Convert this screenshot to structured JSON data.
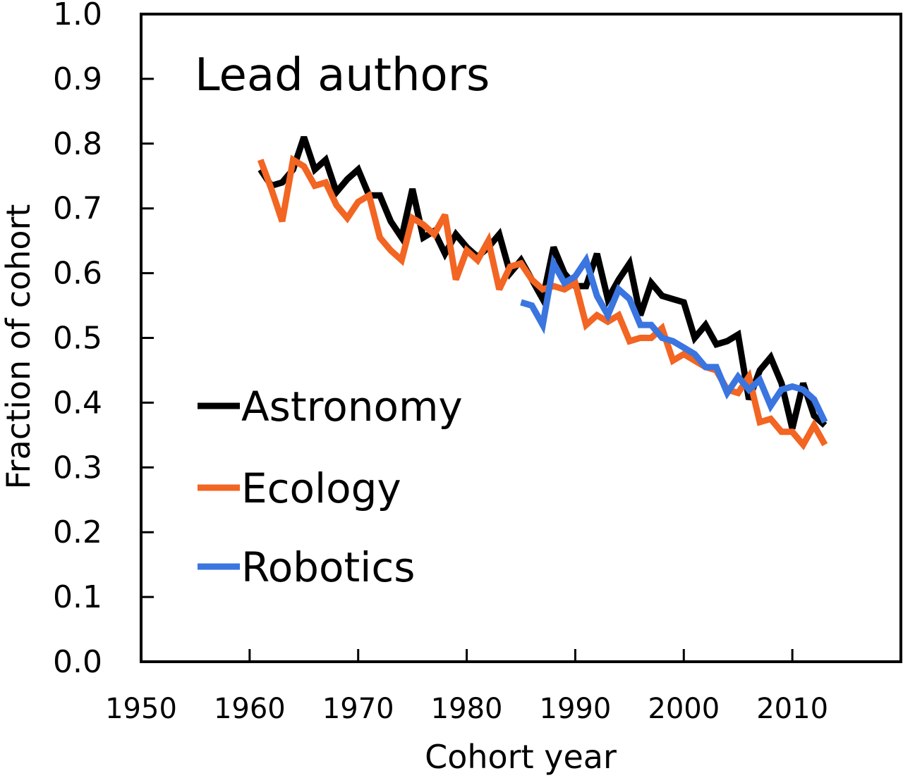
{
  "chart_data": {
    "type": "line",
    "title": "Lead authors",
    "xlabel": "Cohort year",
    "ylabel": "Fraction of cohort",
    "xlim": [
      1950,
      2020
    ],
    "ylim": [
      0.0,
      1.0
    ],
    "xticks": [
      "1950",
      "1960",
      "1970",
      "1980",
      "1990",
      "2000",
      "2010"
    ],
    "yticks": [
      "0.0",
      "0.1",
      "0.2",
      "0.3",
      "0.4",
      "0.5",
      "0.6",
      "0.7",
      "0.8",
      "0.9",
      "1.0"
    ],
    "grid": false,
    "legend_position": "left",
    "series": [
      {
        "name": "Astronomy",
        "color": "#000000",
        "x": [
          1961,
          1962,
          1963,
          1964,
          1965,
          1966,
          1967,
          1968,
          1969,
          1970,
          1971,
          1972,
          1973,
          1974,
          1975,
          1976,
          1977,
          1978,
          1979,
          1980,
          1981,
          1982,
          1983,
          1984,
          1985,
          1986,
          1987,
          1988,
          1989,
          1990,
          1991,
          1992,
          1993,
          1994,
          1995,
          1996,
          1997,
          1998,
          1999,
          2000,
          2001,
          2002,
          2003,
          2004,
          2005,
          2006,
          2007,
          2008,
          2009,
          2010,
          2011,
          2012,
          2013
        ],
        "values": [
          0.76,
          0.735,
          0.74,
          0.76,
          0.81,
          0.76,
          0.775,
          0.725,
          0.745,
          0.76,
          0.72,
          0.72,
          0.68,
          0.655,
          0.73,
          0.655,
          0.665,
          0.63,
          0.66,
          0.64,
          0.625,
          0.64,
          0.66,
          0.6,
          0.62,
          0.59,
          0.56,
          0.64,
          0.6,
          0.58,
          0.58,
          0.63,
          0.56,
          0.59,
          0.615,
          0.535,
          0.585,
          0.565,
          0.56,
          0.555,
          0.5,
          0.52,
          0.49,
          0.495,
          0.505,
          0.405,
          0.45,
          0.47,
          0.43,
          0.36,
          0.43,
          0.38,
          0.365
        ]
      },
      {
        "name": "Ecology",
        "color": "#F26522",
        "x": [
          1961,
          1962,
          1963,
          1964,
          1965,
          1966,
          1967,
          1968,
          1969,
          1970,
          1971,
          1972,
          1973,
          1974,
          1975,
          1976,
          1977,
          1978,
          1979,
          1980,
          1981,
          1982,
          1983,
          1984,
          1985,
          1986,
          1987,
          1988,
          1989,
          1990,
          1991,
          1992,
          1993,
          1994,
          1995,
          1996,
          1997,
          1998,
          1999,
          2000,
          2001,
          2002,
          2003,
          2004,
          2005,
          2006,
          2007,
          2008,
          2009,
          2010,
          2011,
          2012,
          2013
        ],
        "values": [
          0.775,
          0.73,
          0.68,
          0.775,
          0.765,
          0.735,
          0.74,
          0.705,
          0.685,
          0.71,
          0.72,
          0.655,
          0.635,
          0.62,
          0.685,
          0.675,
          0.66,
          0.69,
          0.59,
          0.635,
          0.62,
          0.65,
          0.575,
          0.61,
          0.615,
          0.59,
          0.575,
          0.58,
          0.575,
          0.585,
          0.52,
          0.535,
          0.525,
          0.535,
          0.495,
          0.5,
          0.5,
          0.515,
          0.465,
          0.475,
          0.465,
          0.455,
          0.45,
          0.42,
          0.415,
          0.44,
          0.37,
          0.375,
          0.355,
          0.355,
          0.335,
          0.365,
          0.335
        ]
      },
      {
        "name": "Robotics",
        "color": "#3A75E0",
        "x": [
          1985,
          1986,
          1987,
          1988,
          1989,
          1990,
          1991,
          1992,
          1993,
          1994,
          1995,
          1996,
          1997,
          1998,
          1999,
          2000,
          2001,
          2002,
          2003,
          2004,
          2005,
          2006,
          2007,
          2008,
          2009,
          2010,
          2011,
          2012,
          2013
        ],
        "values": [
          0.555,
          0.55,
          0.52,
          0.615,
          0.585,
          0.595,
          0.62,
          0.565,
          0.535,
          0.575,
          0.56,
          0.52,
          0.52,
          0.5,
          0.495,
          0.485,
          0.475,
          0.455,
          0.455,
          0.415,
          0.44,
          0.42,
          0.435,
          0.395,
          0.42,
          0.425,
          0.42,
          0.405,
          0.37
        ]
      }
    ]
  }
}
